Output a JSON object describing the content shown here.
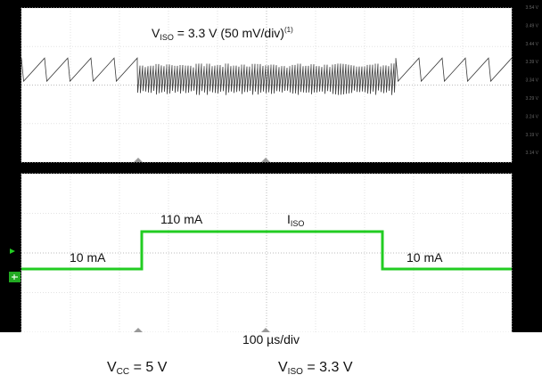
{
  "chart_data": [
    {
      "type": "line",
      "trace_label": {
        "main": "V",
        "sub": "ISO",
        "rest": " = 3.3 V (50 mV/div)",
        "sup": "(1)"
      },
      "ticks": [
        "3.54 V",
        "3.49 V",
        "3.44 V",
        "3.39 V",
        "3.34 V",
        "3.29 V",
        "3.24 V",
        "3.19 V",
        "3.14 V"
      ],
      "ylim": [
        3.14,
        3.54
      ],
      "grid": true,
      "colors": {
        "trace": "#3a3a3a"
      },
      "segments": [
        {
          "t_start": 0,
          "t_end": 130,
          "period": 26,
          "high": 3.41,
          "low": 3.35
        },
        {
          "t_start": 130,
          "t_end": 420,
          "period": 3,
          "high": 3.39,
          "low": 3.32
        },
        {
          "t_start": 420,
          "t_end": 550,
          "period": 26,
          "high": 3.41,
          "low": 3.35
        }
      ]
    },
    {
      "type": "line",
      "trace_label": {
        "main": "I",
        "sub": "ISO"
      },
      "annotations": [
        "10 mA",
        "110 mA",
        "10 mA"
      ],
      "x": [
        0,
        135,
        135,
        405,
        405,
        550
      ],
      "values": [
        10,
        10,
        110,
        110,
        10,
        10
      ],
      "grid": true,
      "colors": {
        "trace": "#22cc22"
      }
    }
  ],
  "timebase": "100 µs/div",
  "conditions": {
    "vcc": {
      "main": "V",
      "sub": "CC",
      "rest": " = 5 V"
    },
    "viso": {
      "main": "V",
      "sub": "ISO",
      "rest": " = 3.3 V"
    }
  }
}
